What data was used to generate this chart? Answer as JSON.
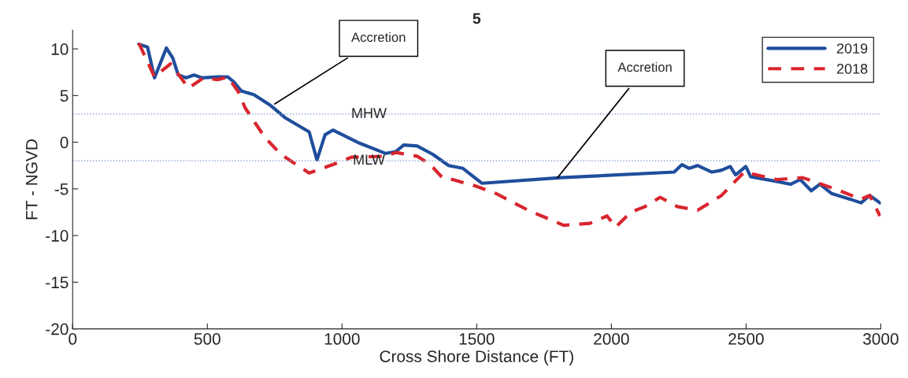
{
  "chart_data": {
    "type": "line",
    "title": "5",
    "xlabel": "Cross Shore Distance (FT)",
    "ylabel": "FT - NGVD",
    "xlim": [
      0,
      3000
    ],
    "xticks": [
      0,
      500,
      1000,
      1500,
      2000,
      2500,
      3000
    ],
    "ylim": [
      -20,
      12
    ],
    "yticks": [
      -20,
      -15,
      -10,
      -5,
      0,
      5,
      10
    ],
    "grid": false,
    "legend": "top right",
    "series": [
      {
        "name": "2019",
        "color": "#1f4e9c",
        "line_style": "solid",
        "x": [
          246,
          278,
          304,
          348,
          372,
          392,
          421,
          451,
          480,
          538,
          576,
          597,
          626,
          673,
          732,
          790,
          878,
          907,
          937,
          966,
          1065,
          1162,
          1200,
          1229,
          1279,
          1337,
          1396,
          1449,
          1519,
          1811,
          2233,
          2262,
          2289,
          2320,
          2373,
          2409,
          2441,
          2461,
          2499,
          2517,
          2614,
          2666,
          2701,
          2742,
          2774,
          2818,
          2886,
          2927,
          2959,
          2997
        ],
        "values": [
          10.5,
          10.2,
          6.9,
          10.1,
          9.0,
          7.2,
          6.9,
          7.2,
          6.9,
          7.0,
          7.0,
          6.5,
          5.5,
          5.1,
          4.0,
          2.6,
          1.1,
          -1.9,
          0.8,
          1.3,
          -0.1,
          -1.2,
          -1.0,
          -0.3,
          -0.4,
          -1.3,
          -2.5,
          -2.8,
          -4.4,
          -3.8,
          -3.2,
          -2.4,
          -2.8,
          -2.5,
          -3.2,
          -3.0,
          -2.6,
          -3.5,
          -2.6,
          -3.7,
          -4.2,
          -4.5,
          -4.0,
          -5.2,
          -4.5,
          -5.5,
          -6.1,
          -6.5,
          -5.7,
          -6.5
        ]
      },
      {
        "name": "2018",
        "color": "#d9252e",
        "line_style": "dashed",
        "x": [
          246,
          304,
          363,
          392,
          430,
          486,
          538,
          576,
          615,
          640,
          714,
          773,
          878,
          966,
          1036,
          1162,
          1200,
          1279,
          1328,
          1376,
          1411,
          1496,
          1572,
          1692,
          1823,
          1920,
          1984,
          2016,
          2072,
          2125,
          2181,
          2245,
          2320,
          2409,
          2449,
          2493,
          2614,
          2710,
          2830,
          2927,
          2959,
          2997
        ],
        "values": [
          10.6,
          7.0,
          8.4,
          7.3,
          5.8,
          6.9,
          6.7,
          7.0,
          5.4,
          3.7,
          0.5,
          -1.3,
          -3.3,
          -2.4,
          -1.6,
          -1.5,
          -1.1,
          -1.5,
          -2.4,
          -3.9,
          -4.0,
          -4.7,
          -5.5,
          -7.3,
          -8.9,
          -8.7,
          -7.9,
          -9.1,
          -7.5,
          -6.9,
          -5.9,
          -6.9,
          -7.3,
          -5.7,
          -4.5,
          -3.2,
          -4.0,
          -3.8,
          -5.0,
          -6.1,
          -5.7,
          -7.9
        ]
      }
    ],
    "ref_lines": [
      {
        "axis": "y",
        "value": 3,
        "label": "MHW",
        "color": "#8fa8d0",
        "line_style": "dotted"
      },
      {
        "axis": "y",
        "value": -2,
        "label": "MLW",
        "color": "#8fa8d0",
        "line_style": "dotted"
      }
    ],
    "annotations": [
      {
        "text": "Accretion",
        "x": 750,
        "y": 4.1
      },
      {
        "text": "Accretion",
        "x": 1800,
        "y": -3.8
      }
    ]
  }
}
